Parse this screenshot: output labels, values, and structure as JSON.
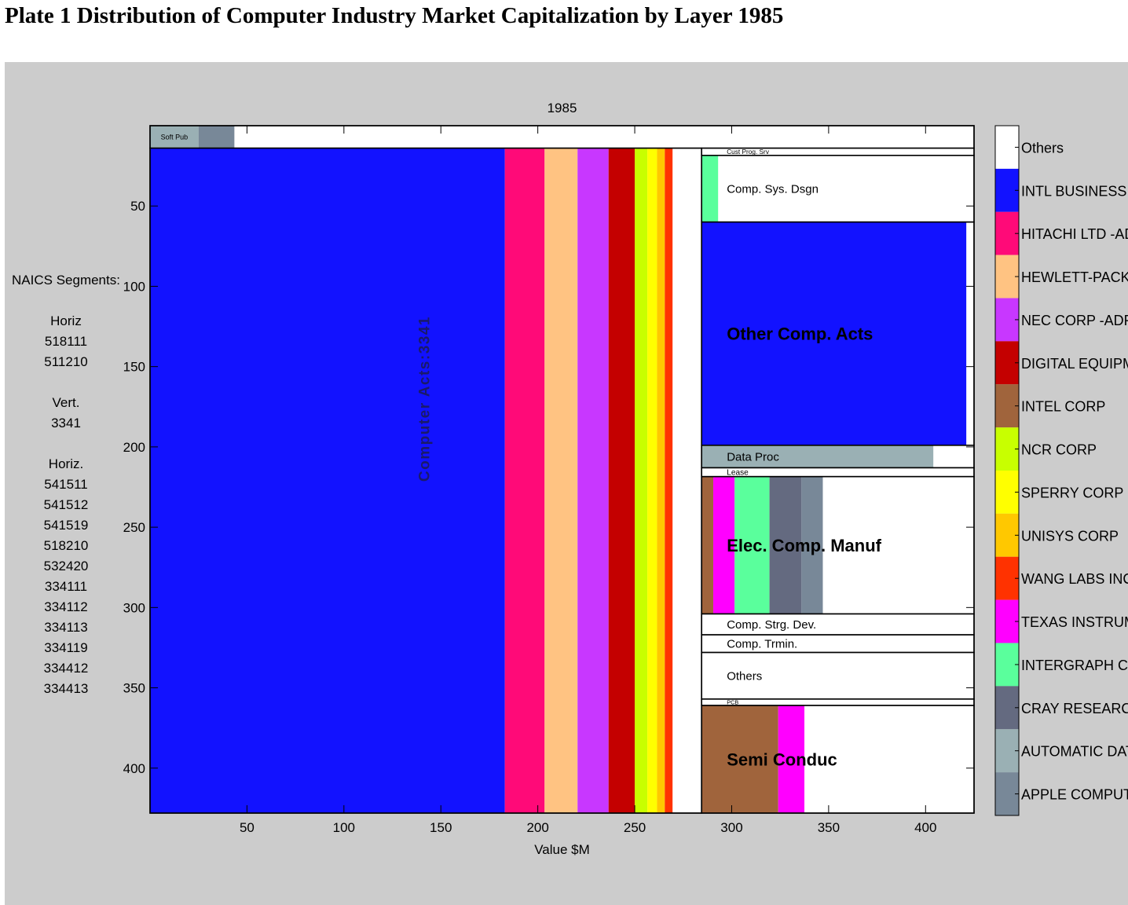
{
  "page_title": "Plate 1 Distribution of Computer Industry Market Capitalization by Layer 1985",
  "naics": {
    "heading": "NAICS Segments:",
    "groups": [
      {
        "label": "Horiz",
        "codes": [
          "518111",
          "511210"
        ]
      },
      {
        "label": "Vert.",
        "codes": [
          "3341"
        ]
      },
      {
        "label": "Horiz.",
        "codes": [
          "541511",
          "541512",
          "541519",
          "518210",
          "532420",
          "334111",
          "334112",
          "334113",
          "334119",
          "334412",
          "334413"
        ]
      }
    ]
  },
  "chart_data": {
    "type": "treemap",
    "title": "1985",
    "xlabel": "Value $M",
    "ylabel": "",
    "xlim": [
      0,
      425
    ],
    "ylim": [
      428,
      0
    ],
    "y_reversed": true,
    "xticks": [
      50,
      100,
      150,
      200,
      250,
      300,
      350,
      400
    ],
    "yticks": [
      50,
      100,
      150,
      200,
      250,
      300,
      350,
      400
    ],
    "legend_position": "right",
    "legend": [
      {
        "name": "Others",
        "color": "#ffffff"
      },
      {
        "name": "INTL BUSINESS MA",
        "color": "#1212ff"
      },
      {
        "name": "HITACHI LTD  -ADR",
        "color": "#ff0a78"
      },
      {
        "name": "HEWLETT-PACKARI",
        "color": "#ffc382"
      },
      {
        "name": "NEC CORP  -ADR",
        "color": "#c837ff"
      },
      {
        "name": "DIGITAL EQUIPMEN",
        "color": "#c40000"
      },
      {
        "name": "INTEL CORP",
        "color": "#a0643c"
      },
      {
        "name": "NCR CORP",
        "color": "#c8ff00"
      },
      {
        "name": "SPERRY CORP",
        "color": "#ffff00"
      },
      {
        "name": "UNISYS CORP",
        "color": "#ffc800"
      },
      {
        "name": "WANG LABS INC",
        "color": "#ff3200"
      },
      {
        "name": "TEXAS INSTRUMENT",
        "color": "#ff00ff"
      },
      {
        "name": "INTERGRAPH CORF",
        "color": "#5aff9c"
      },
      {
        "name": "CRAY RESEARCH",
        "color": "#646a80"
      },
      {
        "name": "AUTOMATIC DATA F",
        "color": "#9ab0b4"
      },
      {
        "name": "APPLE COMPUTER",
        "color": "#788898"
      }
    ],
    "segments": [
      {
        "label": "Soft Pub",
        "y": [
          0,
          14
        ],
        "x": [
          0,
          425
        ],
        "firms": [
          {
            "firm": "AUTOMATIC DATA F",
            "x": [
              0,
              25
            ]
          },
          {
            "firm": "APPLE COMPUTER",
            "x": [
              25,
              43.5
            ]
          }
        ]
      },
      {
        "label": "Computer Acts:3341",
        "y": [
          14,
          428
        ],
        "x": [
          0,
          284.5
        ],
        "firms": [
          {
            "firm": "INTL BUSINESS MA",
            "x": [
              0,
              183
            ]
          },
          {
            "firm": "HITACHI LTD  -ADR",
            "x": [
              183,
              203.5
            ]
          },
          {
            "firm": "HEWLETT-PACKARI",
            "x": [
              203.5,
              220.5
            ]
          },
          {
            "firm": "NEC CORP  -ADR",
            "x": [
              220.5,
              236.5
            ]
          },
          {
            "firm": "DIGITAL EQUIPMEN",
            "x": [
              236.5,
              250
            ]
          },
          {
            "firm": "NCR CORP",
            "x": [
              250,
              256.5
            ]
          },
          {
            "firm": "SPERRY CORP",
            "x": [
              256.5,
              261.5
            ]
          },
          {
            "firm": "UNISYS CORP",
            "x": [
              261.5,
              265.5
            ]
          },
          {
            "firm": "WANG LABS INC",
            "x": [
              265.5,
              269.5
            ]
          }
        ]
      },
      {
        "label": "Cust Prog. Srv",
        "y": [
          14,
          18.5
        ],
        "x": [
          284.5,
          425
        ],
        "firms": []
      },
      {
        "label": "Comp. Sys. Dsgn",
        "y": [
          18.5,
          60
        ],
        "x": [
          284.5,
          425
        ],
        "firms": [
          {
            "firm": "INTERGRAPH CORF",
            "x": [
              284.5,
              293
            ]
          }
        ]
      },
      {
        "label": "Other Comp. Acts",
        "y": [
          60,
          199
        ],
        "x": [
          284.5,
          425
        ],
        "firms": [
          {
            "firm": "INTL BUSINESS MA",
            "x": [
              284.5,
              421
            ]
          }
        ]
      },
      {
        "label": "Data Proc",
        "y": [
          199,
          213
        ],
        "x": [
          284.5,
          425
        ],
        "firms": [
          {
            "firm": "AUTOMATIC DATA F",
            "x": [
              284.5,
              404
            ]
          }
        ]
      },
      {
        "label": "Lease",
        "y": [
          213,
          218.5
        ],
        "x": [
          284.5,
          425
        ],
        "firms": []
      },
      {
        "label": "Elec. Comp. Manuf",
        "y": [
          218.5,
          304
        ],
        "x": [
          284.5,
          425
        ],
        "firms": [
          {
            "firm": "INTEL CORP",
            "x": [
              284.5,
              290.5
            ]
          },
          {
            "firm": "TEXAS INSTRUMENT",
            "x": [
              290.5,
              301.5
            ]
          },
          {
            "firm": "INTERGRAPH CORF",
            "x": [
              301.5,
              319.5
            ]
          },
          {
            "firm": "CRAY RESEARCH",
            "x": [
              319.5,
              336
            ]
          },
          {
            "firm": "APPLE COMPUTER",
            "x": [
              336,
              347
            ]
          }
        ]
      },
      {
        "label": "Comp. Strg. Dev.",
        "y": [
          304,
          317
        ],
        "x": [
          284.5,
          425
        ],
        "firms": []
      },
      {
        "label": "Comp. Trmin.",
        "y": [
          317,
          328
        ],
        "x": [
          284.5,
          425
        ],
        "firms": []
      },
      {
        "label": "Others",
        "y": [
          328,
          357
        ],
        "x": [
          284.5,
          425
        ],
        "firms": []
      },
      {
        "label": "PCB",
        "y": [
          357,
          361
        ],
        "x": [
          284.5,
          425
        ],
        "firms": []
      },
      {
        "label": "Semi Conduc",
        "y": [
          361,
          428
        ],
        "x": [
          284.5,
          425
        ],
        "firms": [
          {
            "firm": "INTEL CORP",
            "x": [
              284.5,
              324
            ]
          },
          {
            "firm": "TEXAS INSTRUMENT",
            "x": [
              324,
              337.5
            ]
          }
        ]
      }
    ]
  }
}
